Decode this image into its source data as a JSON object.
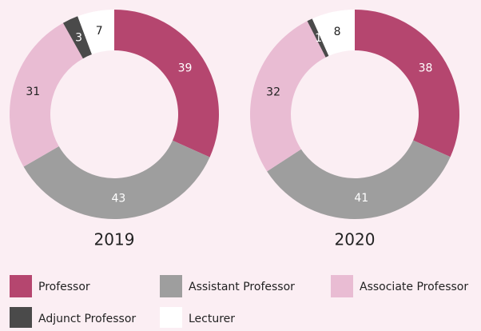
{
  "chart_data": [
    {
      "type": "pie",
      "donut": true,
      "title": "2019",
      "categories": [
        "Professor",
        "Assistant Professor",
        "Associate Professor",
        "Adjunct Professor",
        "Lecturer"
      ],
      "values": [
        39,
        43,
        31,
        3,
        7
      ],
      "colors": [
        "#b5466f",
        "#9e9e9e",
        "#e9bcd3",
        "#4a4a4a",
        "#ffffff"
      ]
    },
    {
      "type": "pie",
      "donut": true,
      "title": "2020",
      "categories": [
        "Professor",
        "Assistant Professor",
        "Associate Professor",
        "Adjunct Professor",
        "Lecturer"
      ],
      "values": [
        38,
        41,
        32,
        1,
        8
      ],
      "colors": [
        "#b5466f",
        "#9e9e9e",
        "#e9bcd3",
        "#4a4a4a",
        "#ffffff"
      ]
    }
  ]
}
